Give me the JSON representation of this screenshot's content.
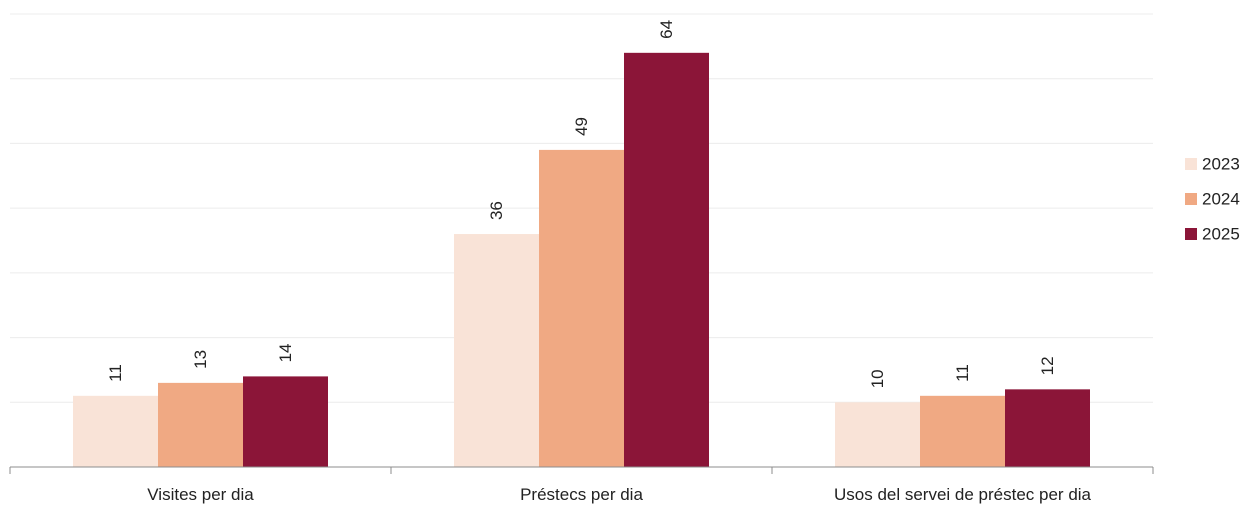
{
  "chart_data": {
    "type": "bar",
    "categories": [
      "Visites per dia",
      "Préstecs per dia",
      "Usos del servei de préstec per dia"
    ],
    "series": [
      {
        "name": "2023",
        "values": [
          11,
          36,
          10
        ],
        "color": "#f9e3d7"
      },
      {
        "name": "2024",
        "values": [
          13,
          49,
          11
        ],
        "color": "#f0a983"
      },
      {
        "name": "2025",
        "values": [
          14,
          64,
          12
        ],
        "color": "#8b1538"
      }
    ],
    "ylim": [
      0,
      70
    ],
    "grid": true,
    "legend": "right"
  }
}
